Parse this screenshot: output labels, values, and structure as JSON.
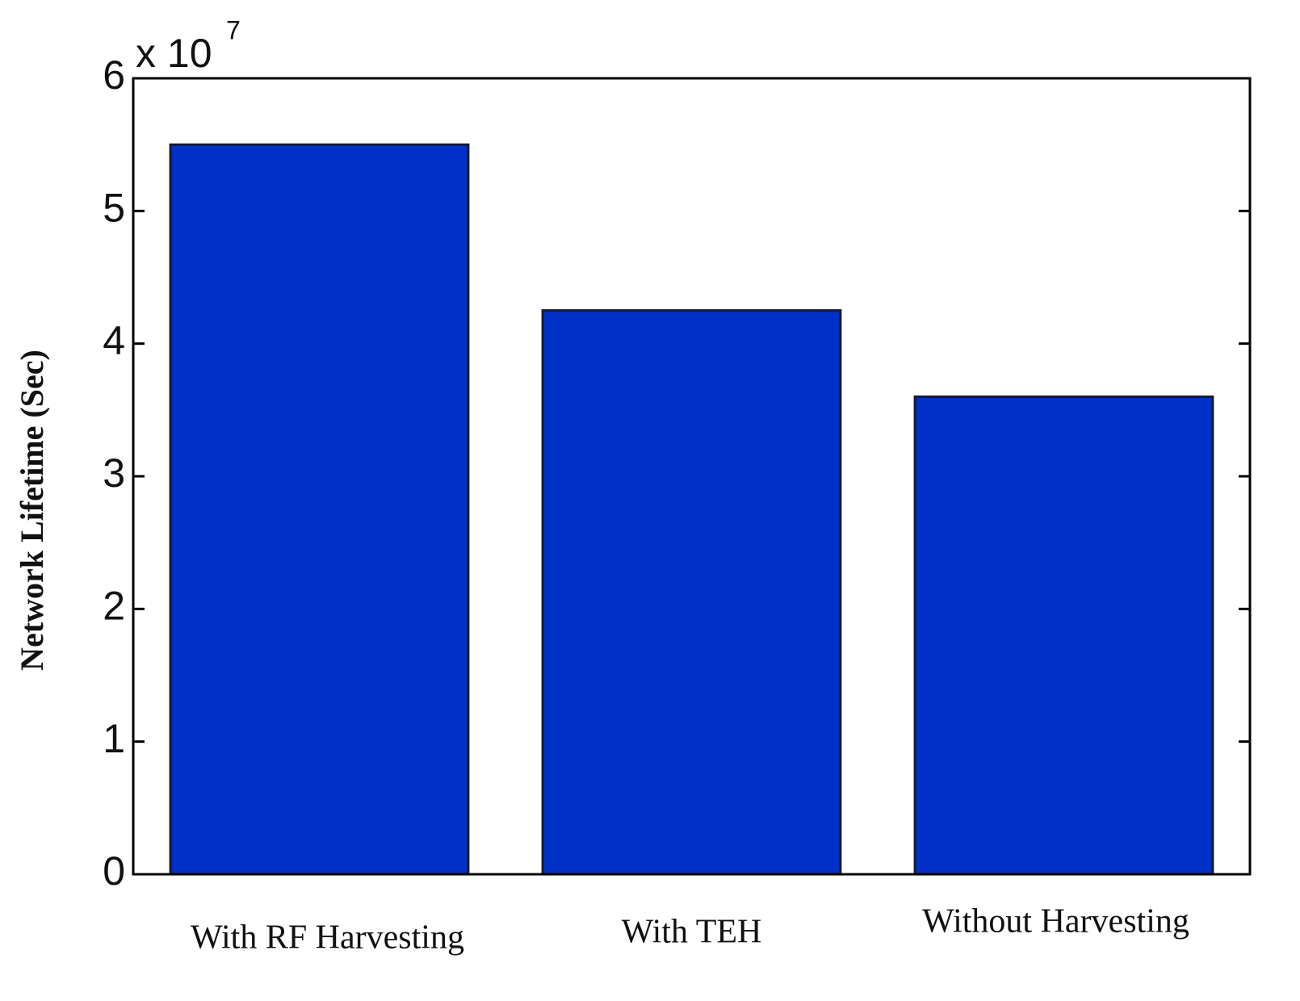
{
  "chart_data": {
    "type": "bar",
    "y_label": "Network  Lifetime (Sec)",
    "y_multiplier": {
      "base": "x 10",
      "exponent": "7"
    },
    "categories": [
      "With RF Harvesting",
      "With TEH",
      "Without Harvesting"
    ],
    "values": [
      5.5,
      4.25,
      3.6
    ],
    "color": "#0030c8",
    "ylim": [
      0,
      6
    ],
    "yticks": [
      0,
      1,
      2,
      3,
      4,
      5,
      6
    ],
    "grid": false
  }
}
